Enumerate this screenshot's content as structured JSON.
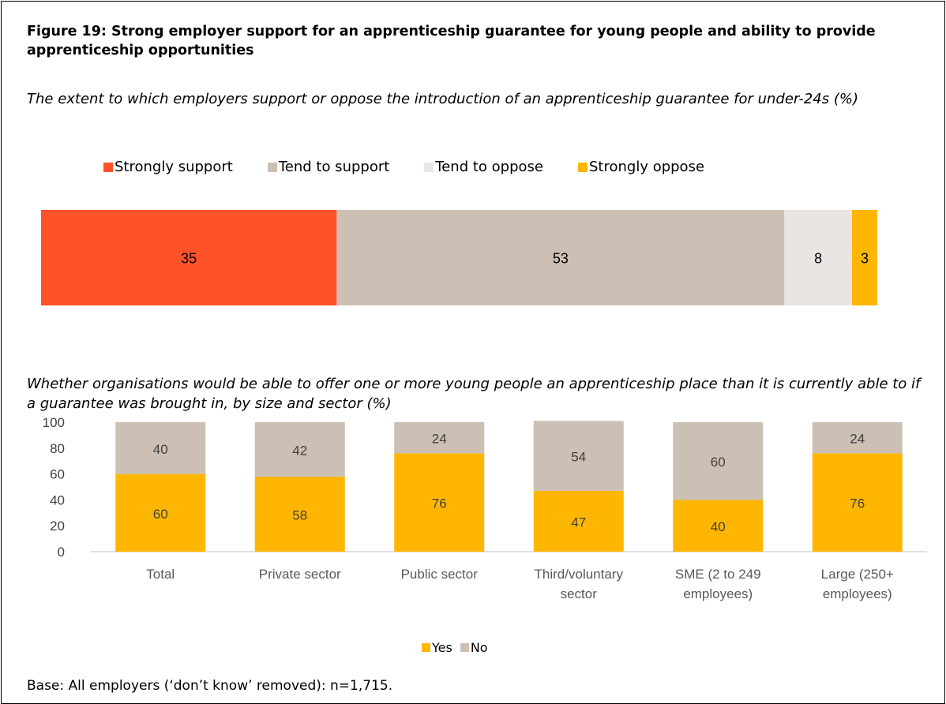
{
  "figure": {
    "title": "Figure 19: Strong employer support for an apprenticeship guarantee for young people and ability to provide apprenticeship opportunities",
    "footer": "Base: All employers (‘don’t know’ removed): n=1,715."
  },
  "chart_data": [
    {
      "type": "bar",
      "orientation": "horizontal-stacked",
      "title": "The extent to which employers support or oppose the introduction of an apprenticeship guarantee for under-24s (%)",
      "legend_position": "top",
      "series": [
        {
          "name": "Strongly support",
          "value": 35,
          "color": "#FF5229"
        },
        {
          "name": "Tend to support",
          "value": 53,
          "color": "#CCC0B4"
        },
        {
          "name": "Tend to oppose",
          "value": 8,
          "color": "#EAE5E2"
        },
        {
          "name": "Strongly oppose",
          "value": 3,
          "color": "#FFB600"
        }
      ]
    },
    {
      "type": "bar",
      "orientation": "vertical-stacked",
      "title": "Whether organisations would be able to offer one or more young people an apprenticeship place than it is currently able to if a guarantee was brought in, by size and sector (%)",
      "categories": [
        "Total",
        "Private sector",
        "Public sector",
        "Third/voluntary sector",
        "SME (2 to 249 employees)",
        "Large (250+ employees)"
      ],
      "category_lines": [
        [
          "Total"
        ],
        [
          "Private sector"
        ],
        [
          "Public sector"
        ],
        [
          "Third/voluntary",
          "sector"
        ],
        [
          "SME (2 to 249",
          "employees)"
        ],
        [
          "Large (250+",
          "employees)"
        ]
      ],
      "series": [
        {
          "name": "Yes",
          "values": [
            60,
            58,
            76,
            47,
            40,
            76
          ],
          "color": "#FFB600"
        },
        {
          "name": "No",
          "values": [
            40,
            42,
            24,
            54,
            60,
            24
          ],
          "color": "#CCC0B4"
        }
      ],
      "ylim": [
        0,
        100
      ],
      "yticks": [
        0,
        20,
        40,
        60,
        80,
        100
      ],
      "grid": false,
      "legend_position": "bottom"
    }
  ]
}
